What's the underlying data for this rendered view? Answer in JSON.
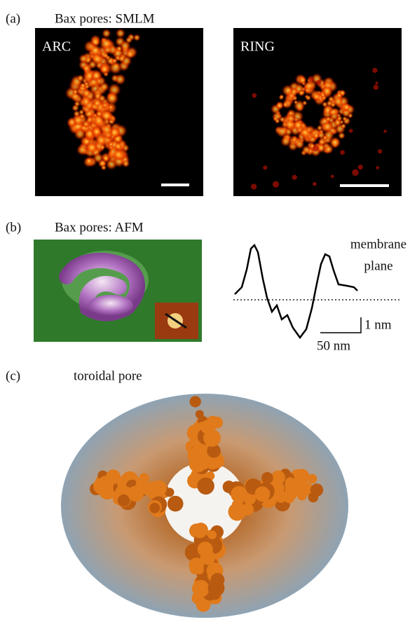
{
  "panel_a": {
    "label": "(a)",
    "title": "Bax pores: SMLM",
    "images": [
      "ARC",
      "RING"
    ]
  },
  "panel_b": {
    "label": "(b)",
    "title": "Bax pores: AFM",
    "profile_label": [
      "membrane",
      "plane"
    ],
    "scale_y": "1 nm",
    "scale_x": "50 nm"
  },
  "panel_c": {
    "label": "(c)",
    "title": "toroidal pore"
  }
}
